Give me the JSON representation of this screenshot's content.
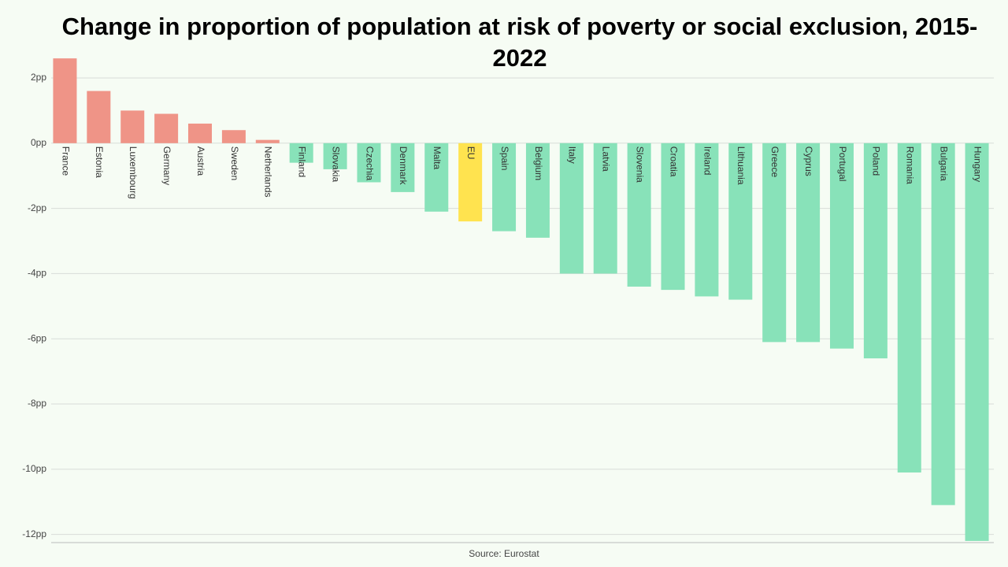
{
  "chart_data": {
    "type": "bar",
    "title": "Change in proportion of population at risk of poverty or social exclusion, 2015-2022",
    "source": "Source: Eurostat",
    "categories": [
      "France",
      "Estonia",
      "Luxembourg",
      "Germany",
      "Austria",
      "Sweden",
      "Netherlands",
      "Finland",
      "Slovakia",
      "Czechia",
      "Denmark",
      "Malta",
      "EU",
      "Spain",
      "Belgium",
      "Italy",
      "Latvia",
      "Slovenia",
      "Croatia",
      "Ireland",
      "Lithuania",
      "Greece",
      "Cyprus",
      "Portugal",
      "Poland",
      "Romania",
      "Bulgaria",
      "Hungary"
    ],
    "values": [
      2.6,
      1.6,
      1.0,
      0.9,
      0.6,
      0.4,
      0.1,
      -0.6,
      -0.8,
      -1.2,
      -1.5,
      -2.1,
      -2.4,
      -2.7,
      -2.9,
      -4.0,
      -4.0,
      -4.4,
      -4.5,
      -4.7,
      -4.8,
      -6.1,
      -6.1,
      -6.3,
      -6.6,
      -10.1,
      -11.1,
      -12.2
    ],
    "colors": [
      "#ef9487",
      "#ef9487",
      "#ef9487",
      "#ef9487",
      "#ef9487",
      "#ef9487",
      "#ef9487",
      "#88e2b9",
      "#88e2b9",
      "#88e2b9",
      "#88e2b9",
      "#88e2b9",
      "#ffe34f",
      "#88e2b9",
      "#88e2b9",
      "#88e2b9",
      "#88e2b9",
      "#88e2b9",
      "#88e2b9",
      "#88e2b9",
      "#88e2b9",
      "#88e2b9",
      "#88e2b9",
      "#88e2b9",
      "#88e2b9",
      "#88e2b9",
      "#88e2b9",
      "#88e2b9"
    ],
    "ylim": [
      -12.25,
      2.7
    ],
    "yticks": [
      {
        "value": 2,
        "label": "2pp"
      },
      {
        "value": 0,
        "label": "0pp"
      },
      {
        "value": -2,
        "label": "-2pp"
      },
      {
        "value": -4,
        "label": "-4pp"
      },
      {
        "value": -6,
        "label": "-6pp"
      },
      {
        "value": -8,
        "label": "-8pp"
      },
      {
        "value": -10,
        "label": "-10pp"
      },
      {
        "value": -12,
        "label": "-12pp"
      }
    ],
    "grid": true
  }
}
